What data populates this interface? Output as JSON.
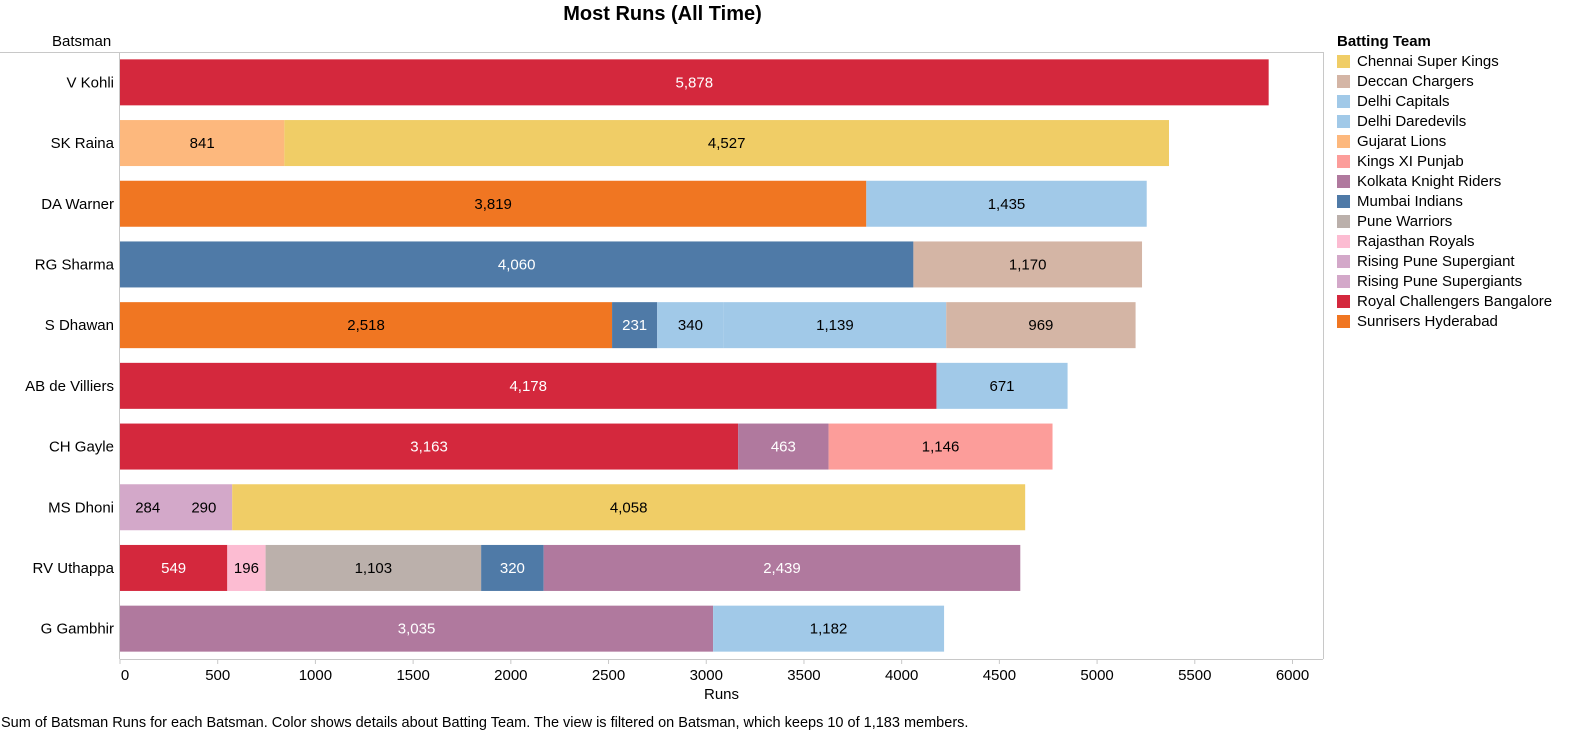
{
  "chart_data": {
    "type": "bar",
    "orientation": "horizontal",
    "stacked": true,
    "title": "Most Runs (All Time)",
    "row_header": "Batsman",
    "xlabel": "Runs",
    "xlim": [
      0,
      6000
    ],
    "xticks": [
      0,
      500,
      1000,
      1500,
      2000,
      2500,
      3000,
      3500,
      4000,
      4500,
      5000,
      5500,
      6000
    ],
    "grid": false,
    "legend_placement": "right",
    "legend_title": "Batting Team",
    "legend": [
      {
        "name": "Chennai Super Kings",
        "color": "#f0cd66"
      },
      {
        "name": "Deccan Chargers",
        "color": "#d4b5a5"
      },
      {
        "name": "Delhi Capitals",
        "color": "#a1c9e8"
      },
      {
        "name": "Delhi Daredevils",
        "color": "#a1c9e8"
      },
      {
        "name": "Gujarat Lions",
        "color": "#fdb87d"
      },
      {
        "name": "Kings XI Punjab",
        "color": "#fc9d9a"
      },
      {
        "name": "Kolkata Knight Riders",
        "color": "#b0799e"
      },
      {
        "name": "Mumbai Indians",
        "color": "#4f7aa7"
      },
      {
        "name": "Pune Warriors",
        "color": "#bbb0ab"
      },
      {
        "name": "Rajasthan Royals",
        "color": "#fcbcd2"
      },
      {
        "name": "Rising Pune Supergiant",
        "color": "#d3a8c9"
      },
      {
        "name": "Rising Pune Supergiants",
        "color": "#d3a8c9"
      },
      {
        "name": "Royal Challengers Bangalore",
        "color": "#d4283d"
      },
      {
        "name": "Sunrisers Hyderabad",
        "color": "#f07622"
      }
    ],
    "rows": [
      {
        "batsman": "V Kohli",
        "segments": [
          {
            "team": "Royal Challengers Bangalore",
            "value": 5878,
            "label": "5,878"
          }
        ]
      },
      {
        "batsman": "SK Raina",
        "segments": [
          {
            "team": "Gujarat Lions",
            "value": 841,
            "label": "841"
          },
          {
            "team": "Chennai Super Kings",
            "value": 4527,
            "label": "4,527"
          }
        ]
      },
      {
        "batsman": "DA Warner",
        "segments": [
          {
            "team": "Sunrisers Hyderabad",
            "value": 3819,
            "label": "3,819"
          },
          {
            "team": "Delhi Daredevils",
            "value": 1435,
            "label": "1,435"
          }
        ]
      },
      {
        "batsman": "RG Sharma",
        "segments": [
          {
            "team": "Mumbai Indians",
            "value": 4060,
            "label": "4,060"
          },
          {
            "team": "Deccan Chargers",
            "value": 1170,
            "label": "1,170"
          }
        ]
      },
      {
        "batsman": "S Dhawan",
        "segments": [
          {
            "team": "Sunrisers Hyderabad",
            "value": 2518,
            "label": "2,518"
          },
          {
            "team": "Mumbai Indians",
            "value": 231,
            "label": "231"
          },
          {
            "team": "Delhi Capitals",
            "value": 340,
            "label": "340"
          },
          {
            "team": "Delhi Daredevils",
            "value": 1139,
            "label": "1,139"
          },
          {
            "team": "Deccan Chargers",
            "value": 969,
            "label": "969"
          }
        ]
      },
      {
        "batsman": "AB de Villiers",
        "segments": [
          {
            "team": "Royal Challengers Bangalore",
            "value": 4178,
            "label": "4,178"
          },
          {
            "team": "Delhi Daredevils",
            "value": 671,
            "label": "671"
          }
        ]
      },
      {
        "batsman": "CH Gayle",
        "segments": [
          {
            "team": "Royal Challengers Bangalore",
            "value": 3163,
            "label": "3,163"
          },
          {
            "team": "Kolkata Knight Riders",
            "value": 463,
            "label": "463"
          },
          {
            "team": "Kings XI Punjab",
            "value": 1146,
            "label": "1,146"
          }
        ]
      },
      {
        "batsman": "MS Dhoni",
        "segments": [
          {
            "team": "Rising Pune Supergiant",
            "value": 284,
            "label": "284"
          },
          {
            "team": "Rising Pune Supergiants",
            "value": 290,
            "label": "290"
          },
          {
            "team": "Chennai Super Kings",
            "value": 4058,
            "label": "4,058"
          }
        ]
      },
      {
        "batsman": "RV Uthappa",
        "segments": [
          {
            "team": "Royal Challengers Bangalore",
            "value": 549,
            "label": "549"
          },
          {
            "team": "Rajasthan Royals",
            "value": 196,
            "label": "196"
          },
          {
            "team": "Pune Warriors",
            "value": 1103,
            "label": "1,103"
          },
          {
            "team": "Mumbai Indians",
            "value": 320,
            "label": "320"
          },
          {
            "team": "Kolkata Knight Riders",
            "value": 2439,
            "label": "2,439"
          }
        ]
      },
      {
        "batsman": "G Gambhir",
        "segments": [
          {
            "team": "Kolkata Knight Riders",
            "value": 3035,
            "label": "3,035"
          },
          {
            "team": "Delhi Daredevils",
            "value": 1182,
            "label": "1,182"
          }
        ]
      }
    ],
    "light_label_teams": [
      "Royal Challengers Bangalore",
      "Mumbai Indians",
      "Kolkata Knight Riders"
    ],
    "caption": "Sum of Batsman Runs for each Batsman.  Color shows details about Batting Team. The view is filtered on Batsman, which keeps 10 of 1,183 members."
  }
}
